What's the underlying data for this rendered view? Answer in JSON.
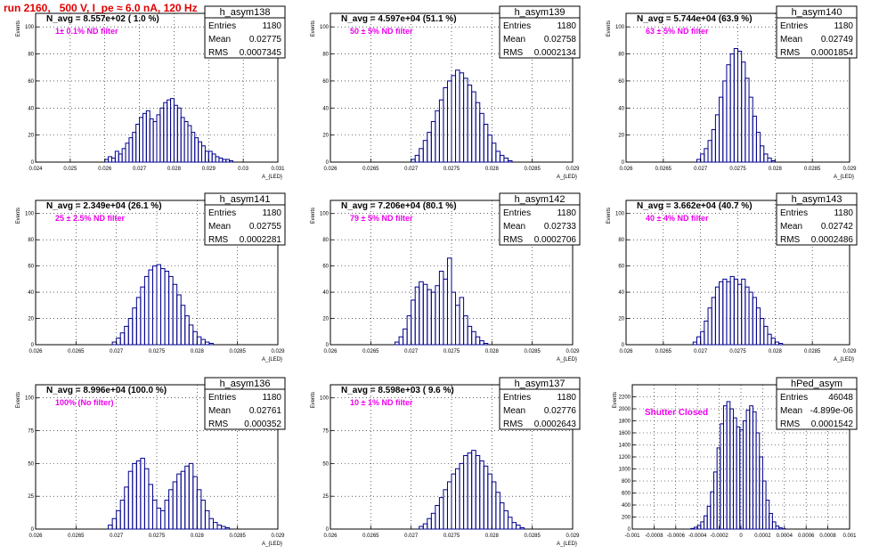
{
  "header": {
    "run_title": "run 2160,   500 V, I_pe ≈ 6.0 nA, 120 Hz"
  },
  "chart_data": [
    {
      "type": "histogram",
      "title": "h_asym138",
      "annotation": "N_avg = 8.557e+02 ( 1.0 %)",
      "filter": "1± 0.1% ND filter",
      "stats": {
        "entries_label": "Entries",
        "entries": "1180",
        "mean_label": "Mean",
        "mean": "0.02775",
        "rms_label": "RMS",
        "rms": "0.0007345"
      },
      "ylabel": "Events",
      "xlabel": "A_{LED}",
      "xlim": [
        0.024,
        0.031
      ],
      "ylim": [
        0,
        110
      ],
      "xticks": [
        0.024,
        0.025,
        0.026,
        0.027,
        0.028,
        0.029,
        0.03,
        0.031
      ],
      "xtick_labels": [
        "0.024",
        "0.025",
        "0.026",
        "0.027",
        "0.028",
        "0.029",
        "0.03",
        "0.031"
      ],
      "yticks": [
        0,
        20,
        40,
        60,
        80,
        100
      ],
      "bins": {
        "x": [
          0.026,
          0.0261,
          0.0262,
          0.0263,
          0.0264,
          0.0265,
          0.0266,
          0.0267,
          0.0268,
          0.0269,
          0.027,
          0.0271,
          0.0272,
          0.0273,
          0.0274,
          0.0275,
          0.0276,
          0.0277,
          0.0278,
          0.0279,
          0.028,
          0.0281,
          0.0282,
          0.0283,
          0.0284,
          0.0285,
          0.0286,
          0.0287,
          0.0288,
          0.0289,
          0.029,
          0.0291,
          0.0292,
          0.0293,
          0.0294,
          0.0295,
          0.0296
        ],
        "counts": [
          2,
          4,
          3,
          8,
          6,
          10,
          14,
          18,
          22,
          28,
          33,
          36,
          38,
          32,
          30,
          35,
          40,
          44,
          46,
          47,
          42,
          40,
          33,
          30,
          27,
          22,
          18,
          15,
          12,
          8,
          8,
          6,
          4,
          3,
          2,
          2,
          1
        ]
      }
    },
    {
      "type": "histogram",
      "title": "h_asym139",
      "annotation": "N_avg = 4.597e+04 (51.1 %)",
      "filter": "50 ± 5% ND filter",
      "stats": {
        "entries_label": "Entries",
        "entries": "1180",
        "mean_label": "Mean",
        "mean": "0.02758",
        "rms_label": "RMS",
        "rms": "0.0002134"
      },
      "ylabel": "Events",
      "xlabel": "A_{LED}",
      "xlim": [
        0.026,
        0.029
      ],
      "ylim": [
        0,
        110
      ],
      "xticks": [
        0.026,
        0.0265,
        0.027,
        0.0275,
        0.028,
        0.0285,
        0.029
      ],
      "xtick_labels": [
        "0.026",
        "0.0265",
        "0.027",
        "0.0275",
        "0.028",
        "0.0285",
        "0.029"
      ],
      "yticks": [
        0,
        20,
        40,
        60,
        80,
        100
      ],
      "bins": {
        "x": [
          0.027,
          0.02705,
          0.0271,
          0.02715,
          0.0272,
          0.02725,
          0.0273,
          0.02735,
          0.0274,
          0.02745,
          0.0275,
          0.02755,
          0.0276,
          0.02765,
          0.0277,
          0.02775,
          0.0278,
          0.02785,
          0.0279,
          0.02795,
          0.028,
          0.02805,
          0.0281,
          0.02815,
          0.0282
        ],
        "counts": [
          2,
          5,
          10,
          16,
          22,
          30,
          38,
          46,
          55,
          60,
          64,
          68,
          66,
          62,
          57,
          52,
          44,
          36,
          28,
          20,
          14,
          8,
          5,
          3,
          1
        ]
      }
    },
    {
      "type": "histogram",
      "title": "h_asym140",
      "annotation": "N_avg = 5.744e+04 (63.9 %)",
      "filter": "63 ± 5% ND filter",
      "stats": {
        "entries_label": "Entries",
        "entries": "1180",
        "mean_label": "Mean",
        "mean": "0.02749",
        "rms_label": "RMS",
        "rms": "0.0001854"
      },
      "ylabel": "Events",
      "xlabel": "A_{LED}",
      "xlim": [
        0.026,
        0.029
      ],
      "ylim": [
        0,
        110
      ],
      "xticks": [
        0.026,
        0.0265,
        0.027,
        0.0275,
        0.028,
        0.0285,
        0.029
      ],
      "xtick_labels": [
        "0.026",
        "0.0265",
        "0.027",
        "0.0275",
        "0.028",
        "0.0285",
        "0.029"
      ],
      "yticks": [
        0,
        20,
        40,
        60,
        80,
        100
      ],
      "bins": {
        "x": [
          0.02695,
          0.027,
          0.02705,
          0.0271,
          0.02715,
          0.0272,
          0.02725,
          0.0273,
          0.02735,
          0.0274,
          0.02745,
          0.0275,
          0.02755,
          0.0276,
          0.02765,
          0.0277,
          0.02775,
          0.0278,
          0.02785,
          0.0279,
          0.02795
        ],
        "counts": [
          2,
          6,
          10,
          16,
          24,
          35,
          48,
          60,
          72,
          80,
          84,
          82,
          74,
          62,
          48,
          34,
          22,
          12,
          6,
          3,
          1
        ]
      }
    },
    {
      "type": "histogram",
      "title": "h_asym141",
      "annotation": "N_avg = 2.349e+04 (26.1 %)",
      "filter": "25 ± 2.5% ND filter",
      "stats": {
        "entries_label": "Entries",
        "entries": "1180",
        "mean_label": "Mean",
        "mean": "0.02755",
        "rms_label": "RMS",
        "rms": "0.0002281"
      },
      "ylabel": "Events",
      "xlabel": "A_{LED}",
      "xlim": [
        0.026,
        0.029
      ],
      "ylim": [
        0,
        110
      ],
      "xticks": [
        0.026,
        0.0265,
        0.027,
        0.0275,
        0.028,
        0.0285,
        0.029
      ],
      "xtick_labels": [
        "0.026",
        "0.0265",
        "0.027",
        "0.0275",
        "0.028",
        "0.0285",
        "0.029"
      ],
      "yticks": [
        0,
        20,
        40,
        60,
        80,
        100
      ],
      "bins": {
        "x": [
          0.02695,
          0.027,
          0.02705,
          0.0271,
          0.02715,
          0.0272,
          0.02725,
          0.0273,
          0.02735,
          0.0274,
          0.02745,
          0.0275,
          0.02755,
          0.0276,
          0.02765,
          0.0277,
          0.02775,
          0.0278,
          0.02785,
          0.0279,
          0.02795,
          0.028,
          0.02805,
          0.0281,
          0.02815
        ],
        "counts": [
          2,
          5,
          9,
          14,
          20,
          28,
          36,
          44,
          52,
          57,
          60,
          61,
          58,
          56,
          52,
          46,
          38,
          30,
          22,
          15,
          10,
          6,
          4,
          2,
          1
        ]
      }
    },
    {
      "type": "histogram",
      "title": "h_asym142",
      "annotation": "N_avg = 7.206e+04 (80.1 %)",
      "filter": "79 ± 5% ND filter",
      "stats": {
        "entries_label": "Entries",
        "entries": "1180",
        "mean_label": "Mean",
        "mean": "0.02733",
        "rms_label": "RMS",
        "rms": "0.0002706"
      },
      "ylabel": "Events",
      "xlabel": "A_{LED}",
      "xlim": [
        0.026,
        0.029
      ],
      "ylim": [
        0,
        110
      ],
      "xticks": [
        0.026,
        0.0265,
        0.027,
        0.0275,
        0.028,
        0.0285,
        0.029
      ],
      "xtick_labels": [
        "0.026",
        "0.0265",
        "0.027",
        "0.0275",
        "0.028",
        "0.0285",
        "0.029"
      ],
      "yticks": [
        0,
        20,
        40,
        60,
        80,
        100
      ],
      "bins": {
        "x": [
          0.0268,
          0.02685,
          0.0269,
          0.02695,
          0.027,
          0.02705,
          0.0271,
          0.02715,
          0.0272,
          0.02725,
          0.0273,
          0.02735,
          0.0274,
          0.02745,
          0.0275,
          0.02755,
          0.0276,
          0.02765,
          0.0277,
          0.02775,
          0.0278,
          0.02785,
          0.0279
        ],
        "counts": [
          2,
          6,
          12,
          22,
          34,
          44,
          48,
          46,
          42,
          40,
          45,
          56,
          50,
          66,
          40,
          30,
          36,
          22,
          14,
          10,
          6,
          3,
          1
        ]
      }
    },
    {
      "type": "histogram",
      "title": "h_asym143",
      "annotation": "N_avg = 3.662e+04 (40.7 %)",
      "filter": "40 ± 4% ND filter",
      "stats": {
        "entries_label": "Entries",
        "entries": "1180",
        "mean_label": "Mean",
        "mean": "0.02742",
        "rms_label": "RMS",
        "rms": "0.0002486"
      },
      "ylabel": "Events",
      "xlabel": "A_{LED}",
      "xlim": [
        0.026,
        0.029
      ],
      "ylim": [
        0,
        110
      ],
      "xticks": [
        0.026,
        0.0265,
        0.027,
        0.0275,
        0.028,
        0.0285,
        0.029
      ],
      "xtick_labels": [
        "0.026",
        "0.0265",
        "0.027",
        "0.0275",
        "0.028",
        "0.0285",
        "0.029"
      ],
      "yticks": [
        0,
        20,
        40,
        60,
        80,
        100
      ],
      "bins": {
        "x": [
          0.0269,
          0.02695,
          0.027,
          0.02705,
          0.0271,
          0.02715,
          0.0272,
          0.02725,
          0.0273,
          0.02735,
          0.0274,
          0.02745,
          0.0275,
          0.02755,
          0.0276,
          0.02765,
          0.0277,
          0.02775,
          0.0278,
          0.02785,
          0.0279,
          0.02795,
          0.028,
          0.02805
        ],
        "counts": [
          2,
          6,
          10,
          18,
          28,
          36,
          44,
          48,
          50,
          48,
          52,
          50,
          46,
          50,
          44,
          40,
          36,
          28,
          20,
          14,
          8,
          5,
          2,
          1
        ]
      }
    },
    {
      "type": "histogram",
      "title": "h_asym136",
      "annotation": "N_avg = 8.996e+04 (100.0 %)",
      "filter": "100% (No filter)",
      "stats": {
        "entries_label": "Entries",
        "entries": "1180",
        "mean_label": "Mean",
        "mean": "0.02761",
        "rms_label": "RMS",
        "rms": "0.000352"
      },
      "ylabel": "Events",
      "xlabel": "A_{LED}",
      "xlim": [
        0.026,
        0.029
      ],
      "ylim": [
        0,
        110
      ],
      "xticks": [
        0.026,
        0.0265,
        0.027,
        0.0275,
        0.028,
        0.0285,
        0.029
      ],
      "xtick_labels": [
        "0.026",
        "0.0265",
        "0.027",
        "0.0275",
        "0.028",
        "0.0285",
        "0.029"
      ],
      "yticks": [
        0,
        25,
        50,
        75,
        100
      ],
      "bins": {
        "x": [
          0.0269,
          0.02695,
          0.027,
          0.02705,
          0.0271,
          0.02715,
          0.0272,
          0.02725,
          0.0273,
          0.02735,
          0.0274,
          0.02745,
          0.0275,
          0.02755,
          0.0276,
          0.02765,
          0.0277,
          0.02775,
          0.0278,
          0.02785,
          0.0279,
          0.02795,
          0.028,
          0.02805,
          0.0281,
          0.02815,
          0.0282,
          0.02825,
          0.0283,
          0.02835
        ],
        "counts": [
          3,
          8,
          14,
          22,
          32,
          44,
          50,
          52,
          54,
          46,
          34,
          22,
          16,
          14,
          22,
          30,
          36,
          42,
          44,
          48,
          50,
          40,
          30,
          22,
          14,
          8,
          5,
          3,
          2,
          1
        ]
      }
    },
    {
      "type": "histogram",
      "title": "h_asym137",
      "annotation": "N_avg = 8.598e+03 ( 9.6 %)",
      "filter": "10 ± 1% ND filter",
      "stats": {
        "entries_label": "Entries",
        "entries": "1180",
        "mean_label": "Mean",
        "mean": "0.02776",
        "rms_label": "RMS",
        "rms": "0.0002643"
      },
      "ylabel": "Events",
      "xlabel": "A_{LED}",
      "xlim": [
        0.026,
        0.029
      ],
      "ylim": [
        0,
        110
      ],
      "xticks": [
        0.026,
        0.0265,
        0.027,
        0.0275,
        0.028,
        0.0285,
        0.029
      ],
      "xtick_labels": [
        "0.026",
        "0.0265",
        "0.027",
        "0.0275",
        "0.028",
        "0.0285",
        "0.029"
      ],
      "yticks": [
        0,
        25,
        50,
        75,
        100
      ],
      "bins": {
        "x": [
          0.0271,
          0.02715,
          0.0272,
          0.02725,
          0.0273,
          0.02735,
          0.0274,
          0.02745,
          0.0275,
          0.02755,
          0.0276,
          0.02765,
          0.0277,
          0.02775,
          0.0278,
          0.02785,
          0.0279,
          0.02795,
          0.028,
          0.02805,
          0.0281,
          0.02815,
          0.0282,
          0.02825,
          0.0283,
          0.02835
        ],
        "counts": [
          2,
          4,
          8,
          12,
          18,
          24,
          30,
          36,
          42,
          46,
          50,
          56,
          58,
          60,
          56,
          52,
          48,
          42,
          36,
          28,
          20,
          14,
          9,
          5,
          3,
          1
        ]
      }
    },
    {
      "type": "histogram",
      "title": "hPed_asym",
      "annotation": "Shutter Closed",
      "stats": {
        "entries_label": "Entries",
        "entries": "46048",
        "mean_label": "Mean",
        "mean": "-4.899e-06",
        "rms_label": "RMS",
        "rms": "0.0001542"
      },
      "ylabel": "Events",
      "xlabel": "",
      "xlim": [
        -0.001,
        0.001
      ],
      "ylim": [
        0,
        2400
      ],
      "xticks": [
        -0.001,
        -0.0008,
        -0.0006,
        -0.0004,
        -0.0002,
        0,
        0.0002,
        0.0004,
        0.0006,
        0.0008,
        0.001
      ],
      "xtick_labels": [
        "-0.001",
        "-0.0008",
        "-0.0006",
        "-0.0004",
        "-0.0002",
        "0",
        "0.0002",
        "0.0004",
        "0.0006",
        "0.0008",
        "0.001"
      ],
      "yticks": [
        0,
        200,
        400,
        600,
        800,
        1000,
        1200,
        1400,
        1600,
        1800,
        2000,
        2200
      ],
      "ytick_labels": [
        "0",
        "200",
        "400",
        "600",
        "800",
        "1000",
        "1200",
        "1400",
        "1600",
        "1800",
        "2000",
        "2200"
      ],
      "bins": {
        "x": [
          -0.00046,
          -0.00043,
          -0.0004,
          -0.00037,
          -0.00034,
          -0.00031,
          -0.00028,
          -0.00025,
          -0.00022,
          -0.00019,
          -0.00016,
          -0.00013,
          -0.0001,
          -7e-05,
          -4e-05,
          -1e-05,
          2e-05,
          5e-05,
          8e-05,
          0.00011,
          0.00014,
          0.00017,
          0.0002,
          0.00023,
          0.00026,
          0.00029,
          0.00032,
          0.00035,
          0.00038
        ],
        "counts": [
          10,
          30,
          60,
          120,
          220,
          380,
          620,
          950,
          1350,
          1750,
          2050,
          2120,
          2000,
          1850,
          1700,
          1650,
          1800,
          1980,
          2050,
          1950,
          1600,
          1200,
          800,
          480,
          260,
          120,
          50,
          20,
          5
        ]
      }
    }
  ]
}
